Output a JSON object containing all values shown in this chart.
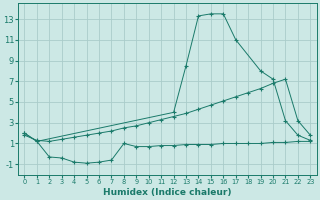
{
  "xlabel": "Humidex (Indice chaleur)",
  "color_main": "#1a7a6a",
  "bg_color": "#cce8e5",
  "grid_color": "#aaccca",
  "ylim": [
    -2,
    14.5
  ],
  "xlim": [
    -0.5,
    23.5
  ],
  "yticks": [
    -1,
    1,
    3,
    5,
    7,
    9,
    11,
    13
  ],
  "xticks": [
    0,
    1,
    2,
    3,
    4,
    5,
    6,
    7,
    8,
    9,
    10,
    11,
    12,
    13,
    14,
    15,
    16,
    17,
    18,
    19,
    20,
    21,
    22,
    23
  ],
  "line1_x": [
    0,
    1,
    12,
    13,
    14,
    15,
    16,
    17,
    19,
    20,
    21,
    22,
    23
  ],
  "line1_y": [
    2.0,
    1.2,
    4.0,
    8.5,
    13.3,
    13.5,
    13.5,
    11.0,
    8.0,
    7.2,
    3.2,
    1.8,
    1.3
  ],
  "line2_x": [
    0,
    1,
    2,
    3,
    4,
    5,
    6,
    7,
    8,
    9,
    10,
    11,
    12,
    13,
    14,
    15,
    16,
    17,
    18,
    19,
    20,
    21,
    22,
    23
  ],
  "line2_y": [
    1.8,
    1.3,
    1.2,
    1.4,
    1.6,
    1.8,
    2.0,
    2.2,
    2.5,
    2.7,
    3.0,
    3.3,
    3.6,
    3.9,
    4.3,
    4.7,
    5.1,
    5.5,
    5.9,
    6.3,
    6.8,
    7.2,
    3.2,
    1.8
  ],
  "line3_x": [
    0,
    1,
    2,
    3,
    4,
    5,
    6,
    7,
    8,
    9,
    10,
    11,
    12,
    13,
    14,
    15,
    16,
    17,
    18,
    19,
    20,
    21,
    22,
    23
  ],
  "line3_y": [
    2.0,
    1.2,
    -0.3,
    -0.4,
    -0.8,
    -0.9,
    -0.8,
    -0.6,
    1.0,
    0.7,
    0.7,
    0.8,
    0.8,
    0.9,
    0.9,
    0.9,
    1.0,
    1.0,
    1.0,
    1.0,
    1.1,
    1.1,
    1.2,
    1.2
  ],
  "xlabel_fontsize": 6.5,
  "tick_fontsize_x": 4.8,
  "tick_fontsize_y": 6.0
}
